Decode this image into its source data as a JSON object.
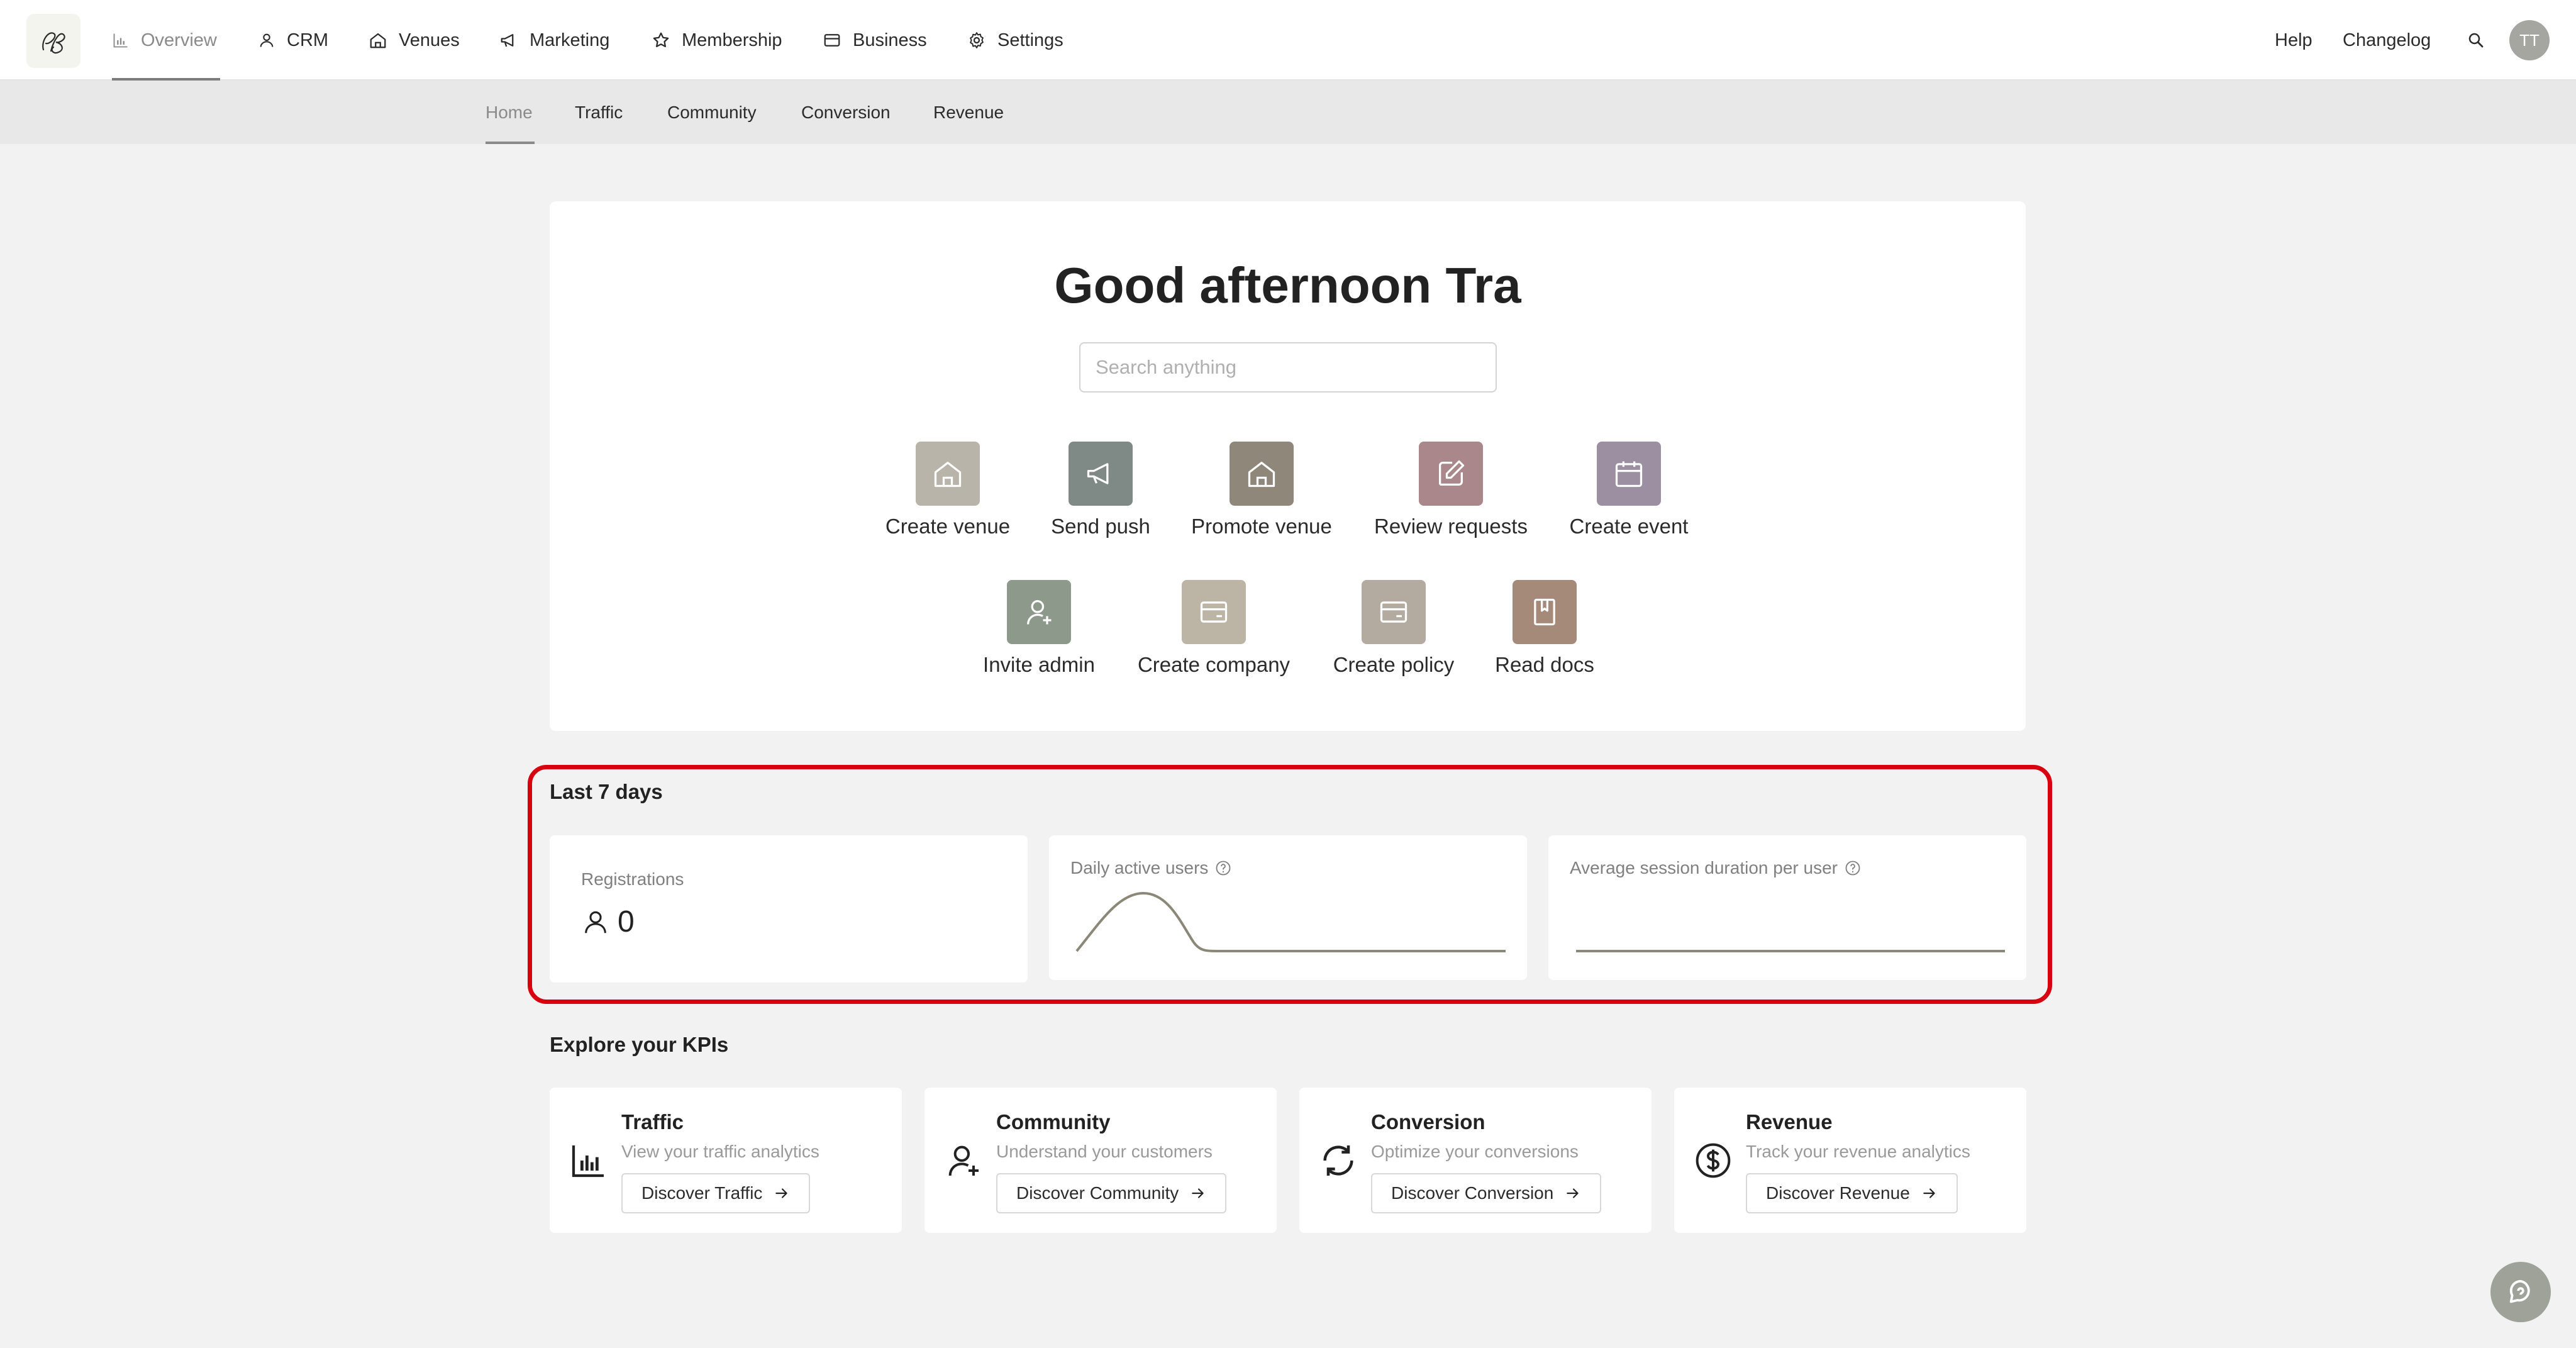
{
  "topnav": {
    "items": [
      {
        "label": "Overview",
        "icon": "chart-icon"
      },
      {
        "label": "CRM",
        "icon": "user-icon"
      },
      {
        "label": "Venues",
        "icon": "home-icon"
      },
      {
        "label": "Marketing",
        "icon": "megaphone-icon"
      },
      {
        "label": "Membership",
        "icon": "star-icon"
      },
      {
        "label": "Business",
        "icon": "card-icon"
      },
      {
        "label": "Settings",
        "icon": "gear-icon"
      }
    ],
    "help": "Help",
    "changelog": "Changelog",
    "avatar_initials": "TT"
  },
  "subnav": {
    "items": [
      "Home",
      "Traffic",
      "Community",
      "Conversion",
      "Revenue"
    ]
  },
  "hero": {
    "greeting": "Good afternoon Tra",
    "search_placeholder": "Search anything"
  },
  "actions": [
    {
      "label": "Create venue",
      "icon": "home-icon",
      "color": "#b8b4a9"
    },
    {
      "label": "Send push",
      "icon": "megaphone-icon",
      "color": "#7f8a86"
    },
    {
      "label": "Promote venue",
      "icon": "home-icon",
      "color": "#8f877a"
    },
    {
      "label": "Review requests",
      "icon": "edit-icon",
      "color": "#a9878b"
    },
    {
      "label": "Create event",
      "icon": "calendar-icon",
      "color": "#9b8fa1"
    },
    {
      "label": "Invite admin",
      "icon": "user-plus-icon",
      "color": "#8d9a8b"
    },
    {
      "label": "Create company",
      "icon": "card-icon",
      "color": "#bcb5a6"
    },
    {
      "label": "Create policy",
      "icon": "card-icon",
      "color": "#b3ab9f"
    },
    {
      "label": "Read docs",
      "icon": "book-icon",
      "color": "#a58979"
    }
  ],
  "last7": {
    "title": "Last 7 days",
    "registrations_label": "Registrations",
    "registrations_value": "0",
    "dau_label": "Daily active users",
    "session_label": "Average session duration per user"
  },
  "kpis": {
    "title": "Explore your KPIs",
    "cards": [
      {
        "title": "Traffic",
        "subtitle": "View your traffic analytics",
        "button": "Discover Traffic",
        "icon": "bar-chart-icon"
      },
      {
        "title": "Community",
        "subtitle": "Understand your customers",
        "button": "Discover Community",
        "icon": "user-plus-icon"
      },
      {
        "title": "Conversion",
        "subtitle": "Optimize your conversions",
        "button": "Discover Conversion",
        "icon": "refresh-icon"
      },
      {
        "title": "Revenue",
        "subtitle": "Track your revenue analytics",
        "button": "Discover Revenue",
        "icon": "dollar-icon"
      }
    ]
  },
  "colors": {
    "accent_nav": "#7c7c7c",
    "highlight_border": "#d9000f",
    "sparkline": "#8c8878"
  }
}
